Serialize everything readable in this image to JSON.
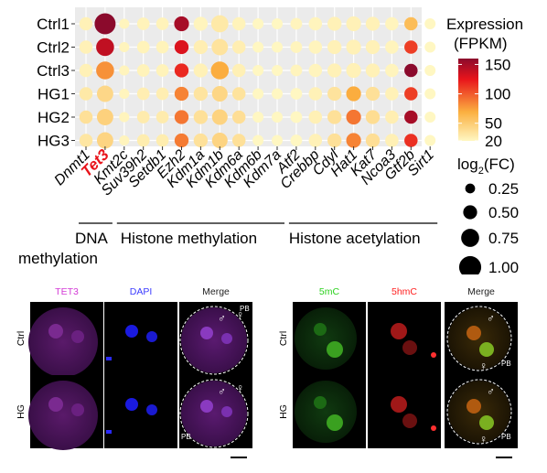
{
  "chart_data": {
    "type": "dotplot",
    "genes": [
      "Dnmt1",
      "Tet3",
      "Kmt2c",
      "Suv39h2",
      "Setdb1",
      "Ezh2",
      "Kdm1a",
      "Kdm1b",
      "Kdm6a",
      "Kdm6b",
      "Kdm7a",
      "Atf2",
      "Crebbp",
      "Cdyl",
      "Hat1",
      "Kat7",
      "Ncoa3",
      "Gtf2b",
      "Sirt1"
    ],
    "highlight_gene": "Tet3",
    "highlight_color": "#e8141b",
    "samples": [
      "Ctrl1",
      "Ctrl2",
      "Ctrl3",
      "HG1",
      "HG2",
      "HG3"
    ],
    "fpkm": [
      [
        24,
        160,
        22,
        23,
        23,
        150,
        22,
        30,
        23,
        20,
        20,
        22,
        22,
        24,
        24,
        24,
        22,
        60,
        20
      ],
      [
        24,
        140,
        22,
        23,
        23,
        130,
        26,
        34,
        26,
        20,
        20,
        22,
        22,
        24,
        24,
        24,
        22,
        110,
        20
      ],
      [
        24,
        80,
        22,
        23,
        23,
        118,
        24,
        70,
        25,
        20,
        20,
        22,
        22,
        24,
        24,
        24,
        22,
        160,
        20
      ],
      [
        30,
        42,
        22,
        26,
        26,
        85,
        33,
        43,
        34,
        20,
        20,
        20,
        24,
        34,
        70,
        36,
        24,
        110,
        20
      ],
      [
        36,
        46,
        22,
        28,
        28,
        90,
        36,
        45,
        37,
        20,
        20,
        20,
        25,
        36,
        90,
        38,
        26,
        150,
        20
      ],
      [
        32,
        44,
        22,
        27,
        27,
        88,
        35,
        44,
        36,
        20,
        20,
        20,
        24,
        36,
        85,
        37,
        25,
        115,
        20
      ]
    ],
    "log2fc": [
      [
        0.5,
        1.0,
        0.3,
        0.45,
        0.45,
        0.6,
        0.55,
        0.75,
        0.5,
        0.35,
        0.35,
        0.4,
        0.5,
        0.55,
        0.6,
        0.55,
        0.5,
        0.5,
        0.35
      ],
      [
        0.5,
        0.8,
        0.3,
        0.45,
        0.45,
        0.55,
        0.55,
        0.7,
        0.5,
        0.35,
        0.35,
        0.4,
        0.5,
        0.55,
        0.6,
        0.55,
        0.5,
        0.5,
        0.35
      ],
      [
        0.5,
        0.8,
        0.3,
        0.45,
        0.45,
        0.55,
        0.55,
        0.8,
        0.5,
        0.35,
        0.35,
        0.4,
        0.5,
        0.55,
        0.6,
        0.55,
        0.5,
        0.5,
        0.35
      ],
      [
        0.5,
        0.7,
        0.3,
        0.45,
        0.45,
        0.55,
        0.55,
        0.65,
        0.5,
        0.35,
        0.35,
        0.4,
        0.5,
        0.55,
        0.6,
        0.55,
        0.5,
        0.5,
        0.35
      ],
      [
        0.5,
        0.7,
        0.3,
        0.45,
        0.45,
        0.55,
        0.55,
        0.65,
        0.5,
        0.35,
        0.35,
        0.4,
        0.5,
        0.55,
        0.6,
        0.55,
        0.5,
        0.5,
        0.35
      ],
      [
        0.5,
        0.7,
        0.3,
        0.45,
        0.45,
        0.55,
        0.55,
        0.65,
        0.5,
        0.35,
        0.35,
        0.4,
        0.5,
        0.55,
        0.6,
        0.55,
        0.5,
        0.5,
        0.35
      ]
    ],
    "color_legend": {
      "title_line1": "Expression",
      "title_line2": "(FPKM)",
      "ticks": [
        150,
        100,
        50,
        20
      ],
      "range": [
        20,
        160
      ],
      "colors": [
        "#fff7c2",
        "#fbb040",
        "#e8141b",
        "#8b0a2c"
      ]
    },
    "size_legend": {
      "title_main": "log",
      "title_sub": "2",
      "title_rest": "(FC)",
      "values": [
        0.25,
        0.5,
        0.75,
        1.0
      ],
      "labels": [
        "0.25",
        "0.50",
        "0.75",
        "1.00"
      ]
    },
    "groups": [
      {
        "line1": "DNA",
        "line2": "methylation",
        "from_gene": 0,
        "to_gene": 1
      },
      {
        "line1": "Histone methylation",
        "line2": "",
        "from_gene": 2,
        "to_gene": 10
      },
      {
        "line1": "Histone acetylation",
        "line2": "",
        "from_gene": 11,
        "to_gene": 18
      }
    ]
  },
  "micro_panels": [
    {
      "channels": [
        {
          "label": "TET3",
          "color": "#d33bd6"
        },
        {
          "label": "DAPI",
          "color": "#3b3bff"
        },
        {
          "label": "Merge",
          "color": "#222222"
        }
      ],
      "rows": [
        "Ctrl",
        "HG"
      ],
      "annotations": {
        "male": "♂",
        "female": "♀",
        "pb": "PB"
      }
    },
    {
      "channels": [
        {
          "label": "5mC",
          "color": "#2cd11e"
        },
        {
          "label": "5hmC",
          "color": "#ff2020"
        },
        {
          "label": "Merge",
          "color": "#222222"
        }
      ],
      "rows": [
        "Ctrl",
        "HG"
      ],
      "annotations": {
        "male": "♂",
        "female": "♀",
        "pb": "PB"
      }
    }
  ]
}
